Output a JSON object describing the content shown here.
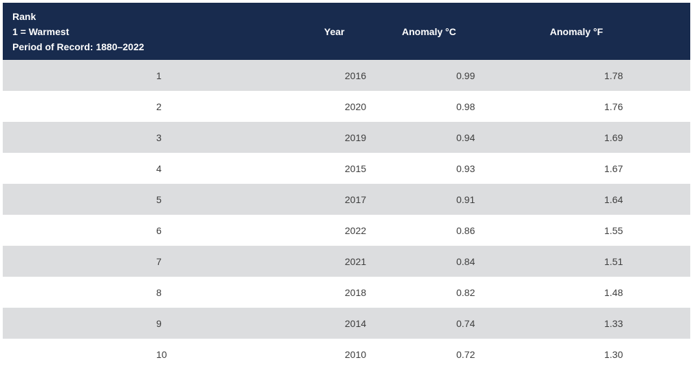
{
  "header": {
    "rank_line1": "Rank",
    "rank_line2": "1 = Warmest",
    "rank_line3": "Period of Record: 1880–2022",
    "year": "Year",
    "anomaly_c": "Anomaly °C",
    "anomaly_f": "Anomaly °F"
  },
  "rows": [
    {
      "rank": "1",
      "year": "2016",
      "anomaly_c": "0.99",
      "anomaly_f": "1.78"
    },
    {
      "rank": "2",
      "year": "2020",
      "anomaly_c": "0.98",
      "anomaly_f": "1.76"
    },
    {
      "rank": "3",
      "year": "2019",
      "anomaly_c": "0.94",
      "anomaly_f": "1.69"
    },
    {
      "rank": "4",
      "year": "2015",
      "anomaly_c": "0.93",
      "anomaly_f": "1.67"
    },
    {
      "rank": "5",
      "year": "2017",
      "anomaly_c": "0.91",
      "anomaly_f": "1.64"
    },
    {
      "rank": "6",
      "year": "2022",
      "anomaly_c": "0.86",
      "anomaly_f": "1.55"
    },
    {
      "rank": "7",
      "year": "2021",
      "anomaly_c": "0.84",
      "anomaly_f": "1.51"
    },
    {
      "rank": "8",
      "year": "2018",
      "anomaly_c": "0.82",
      "anomaly_f": "1.48"
    },
    {
      "rank": "9",
      "year": "2014",
      "anomaly_c": "0.74",
      "anomaly_f": "1.33"
    },
    {
      "rank": "10",
      "year": "2010",
      "anomaly_c": "0.72",
      "anomaly_f": "1.30"
    }
  ],
  "colors": {
    "header_bg": "#182b4e",
    "header_text": "#ffffff",
    "row_shaded": "#dcdddf",
    "row_plain": "#ffffff",
    "cell_text": "#3d3d3d"
  }
}
